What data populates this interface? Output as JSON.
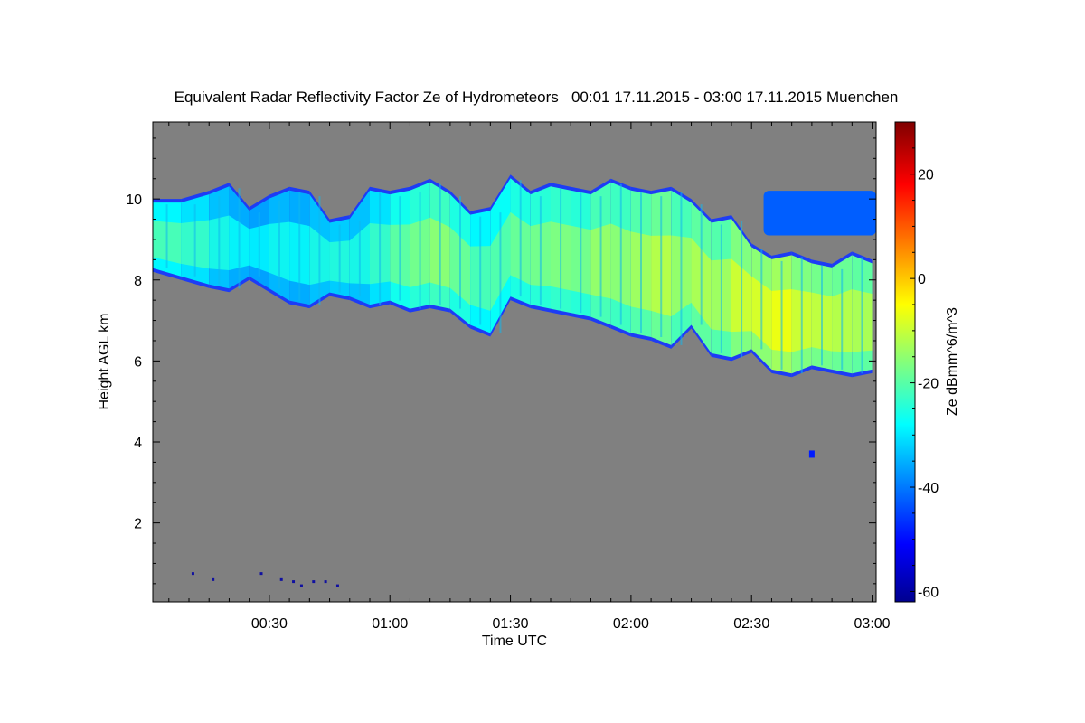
{
  "chart_data": {
    "type": "heatmap",
    "title": "Equivalent Radar Reflectivity Factor Ze of Hydrometeors   00:01 17.11.2015 - 03:00 17.11.2015 Muenchen",
    "xlabel": "Time UTC",
    "ylabel": "Height AGL km",
    "colorbar_label": "Ze dBmm^6/m^3",
    "xlim_minutes": [
      1,
      181
    ],
    "ylim_km": [
      0.05,
      11.9
    ],
    "x_ticks": [
      {
        "minute": 30,
        "label": "00:30"
      },
      {
        "minute": 60,
        "label": "01:00"
      },
      {
        "minute": 90,
        "label": "01:30"
      },
      {
        "minute": 120,
        "label": "02:00"
      },
      {
        "minute": 150,
        "label": "02:30"
      },
      {
        "minute": 180,
        "label": "03:00"
      }
    ],
    "y_ticks": [
      {
        "km": 2,
        "label": "2"
      },
      {
        "km": 4,
        "label": "4"
      },
      {
        "km": 6,
        "label": "6"
      },
      {
        "km": 8,
        "label": "8"
      },
      {
        "km": 10,
        "label": "10"
      }
    ],
    "colorbar_range_dbz": [
      -62,
      30
    ],
    "colorbar_ticks": [
      {
        "value": 20,
        "label": "20"
      },
      {
        "value": 0,
        "label": "0"
      },
      {
        "value": -20,
        "label": "-20"
      },
      {
        "value": -40,
        "label": "-40"
      },
      {
        "value": -60,
        "label": "-60"
      }
    ],
    "background_color": "#808080",
    "cloud_layer": {
      "time_minutes": [
        1,
        8,
        15,
        20,
        25,
        30,
        35,
        40,
        45,
        50,
        55,
        60,
        65,
        70,
        75,
        80,
        85,
        90,
        95,
        100,
        105,
        110,
        115,
        120,
        125,
        130,
        135,
        140,
        145,
        150,
        155,
        160,
        165,
        170,
        175,
        180
      ],
      "top_km": [
        10.0,
        10.0,
        10.2,
        10.4,
        9.8,
        10.1,
        10.3,
        10.2,
        9.5,
        9.6,
        10.3,
        10.2,
        10.3,
        10.5,
        10.2,
        9.7,
        9.8,
        10.6,
        10.2,
        10.4,
        10.3,
        10.2,
        10.5,
        10.3,
        10.2,
        10.3,
        10.0,
        9.5,
        9.6,
        8.9,
        8.6,
        8.7,
        8.5,
        8.4,
        8.7,
        8.5
      ],
      "base_km": [
        8.2,
        8.0,
        7.8,
        7.7,
        8.0,
        7.7,
        7.4,
        7.3,
        7.6,
        7.5,
        7.3,
        7.4,
        7.2,
        7.3,
        7.2,
        6.8,
        6.6,
        7.5,
        7.3,
        7.2,
        7.1,
        7.0,
        6.8,
        6.6,
        6.5,
        6.3,
        6.8,
        6.1,
        6.0,
        6.2,
        5.7,
        5.6,
        5.8,
        5.7,
        5.6,
        5.7
      ],
      "ze_dbz": [
        -20,
        -22,
        -25,
        -27,
        -28,
        -26,
        -27,
        -25,
        -24,
        -25,
        -22,
        -18,
        -16,
        -14,
        -17,
        -20,
        -19,
        -17,
        -16,
        -15,
        -16,
        -13,
        -14,
        -12,
        -10,
        -13,
        -11,
        -12,
        -8,
        -7,
        -5,
        -8,
        -9,
        -10,
        -11,
        -12
      ]
    },
    "upper_patch": {
      "time_minutes": [
        153,
        181
      ],
      "top_km": 10.2,
      "base_km": 9.1,
      "ze_dbz": -42
    },
    "small_echo": {
      "time_minutes": 165,
      "height_km": 3.7,
      "ze_dbz": -48
    },
    "ground_specks": [
      {
        "time_minutes": 11,
        "height_km": 0.75
      },
      {
        "time_minutes": 16,
        "height_km": 0.6
      },
      {
        "time_minutes": 28,
        "height_km": 0.75
      },
      {
        "time_minutes": 33,
        "height_km": 0.6
      },
      {
        "time_minutes": 36,
        "height_km": 0.55
      },
      {
        "time_minutes": 38,
        "height_km": 0.45
      },
      {
        "time_minutes": 41,
        "height_km": 0.55
      },
      {
        "time_minutes": 44,
        "height_km": 0.55
      },
      {
        "time_minutes": 47,
        "height_km": 0.45
      }
    ]
  }
}
